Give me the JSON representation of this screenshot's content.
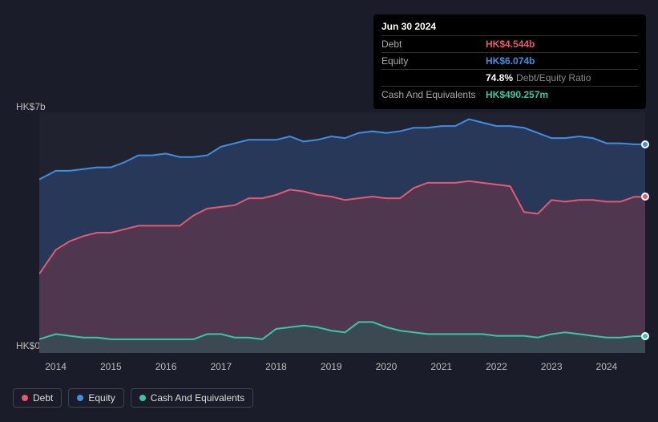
{
  "tooltip": {
    "date": "Jun 30 2024",
    "rows": [
      {
        "label": "Debt",
        "value": "HK$4.544b",
        "color": "#e8596f"
      },
      {
        "label": "Equity",
        "value": "HK$6.074b",
        "color": "#3d8fe6"
      },
      {
        "label": "",
        "value": "74.8%",
        "extra": "Debt/Equity Ratio",
        "color": "#ffffff"
      },
      {
        "label": "Cash And Equivalents",
        "value": "HK$490.257m",
        "color": "#38c7a5"
      }
    ]
  },
  "chart": {
    "type": "area",
    "background_color": "#20232f",
    "page_background": "#1a1d29",
    "y_axis": {
      "min": 0,
      "max": 7,
      "unit": "HK$b",
      "labels": [
        {
          "text": "HK$7b",
          "value": 7
        },
        {
          "text": "HK$0",
          "value": 0
        }
      ],
      "label_color": "#bbbbbb",
      "label_fontsize": 12
    },
    "x_axis": {
      "min": 2013.7,
      "max": 2024.7,
      "ticks": [
        2014,
        2015,
        2016,
        2017,
        2018,
        2019,
        2020,
        2021,
        2022,
        2023,
        2024
      ],
      "label_color": "#bbbbbb",
      "label_fontsize": 12
    },
    "series": [
      {
        "name": "Equity",
        "stroke": "#3d8fe6",
        "fill": "#2d4a7a",
        "fill_opacity": 0.55,
        "line_width": 2,
        "data": [
          [
            2013.7,
            5.05
          ],
          [
            2014.0,
            5.3
          ],
          [
            2014.25,
            5.3
          ],
          [
            2014.5,
            5.35
          ],
          [
            2014.75,
            5.4
          ],
          [
            2015.0,
            5.4
          ],
          [
            2015.25,
            5.55
          ],
          [
            2015.5,
            5.75
          ],
          [
            2015.75,
            5.75
          ],
          [
            2016.0,
            5.8
          ],
          [
            2016.25,
            5.7
          ],
          [
            2016.5,
            5.7
          ],
          [
            2016.75,
            5.75
          ],
          [
            2017.0,
            6.0
          ],
          [
            2017.25,
            6.1
          ],
          [
            2017.5,
            6.2
          ],
          [
            2017.75,
            6.2
          ],
          [
            2018.0,
            6.2
          ],
          [
            2018.25,
            6.3
          ],
          [
            2018.5,
            6.15
          ],
          [
            2018.75,
            6.2
          ],
          [
            2019.0,
            6.3
          ],
          [
            2019.25,
            6.25
          ],
          [
            2019.5,
            6.4
          ],
          [
            2019.75,
            6.45
          ],
          [
            2020.0,
            6.4
          ],
          [
            2020.25,
            6.45
          ],
          [
            2020.5,
            6.55
          ],
          [
            2020.75,
            6.55
          ],
          [
            2021.0,
            6.6
          ],
          [
            2021.25,
            6.6
          ],
          [
            2021.5,
            6.8
          ],
          [
            2021.75,
            6.7
          ],
          [
            2022.0,
            6.6
          ],
          [
            2022.25,
            6.6
          ],
          [
            2022.5,
            6.55
          ],
          [
            2022.75,
            6.4
          ],
          [
            2023.0,
            6.25
          ],
          [
            2023.25,
            6.25
          ],
          [
            2023.5,
            6.3
          ],
          [
            2023.75,
            6.25
          ],
          [
            2024.0,
            6.1
          ],
          [
            2024.25,
            6.1
          ],
          [
            2024.5,
            6.07
          ],
          [
            2024.7,
            6.07
          ]
        ]
      },
      {
        "name": "Debt",
        "stroke": "#e8596f",
        "fill": "#7a3548",
        "fill_opacity": 0.5,
        "line_width": 2,
        "data": [
          [
            2013.7,
            2.3
          ],
          [
            2014.0,
            3.0
          ],
          [
            2014.25,
            3.25
          ],
          [
            2014.5,
            3.4
          ],
          [
            2014.75,
            3.5
          ],
          [
            2015.0,
            3.5
          ],
          [
            2015.25,
            3.6
          ],
          [
            2015.5,
            3.7
          ],
          [
            2015.75,
            3.7
          ],
          [
            2016.0,
            3.7
          ],
          [
            2016.25,
            3.7
          ],
          [
            2016.5,
            4.0
          ],
          [
            2016.75,
            4.2
          ],
          [
            2017.0,
            4.25
          ],
          [
            2017.25,
            4.3
          ],
          [
            2017.5,
            4.5
          ],
          [
            2017.75,
            4.5
          ],
          [
            2018.0,
            4.6
          ],
          [
            2018.25,
            4.75
          ],
          [
            2018.5,
            4.7
          ],
          [
            2018.75,
            4.6
          ],
          [
            2019.0,
            4.55
          ],
          [
            2019.25,
            4.45
          ],
          [
            2019.5,
            4.5
          ],
          [
            2019.75,
            4.55
          ],
          [
            2020.0,
            4.5
          ],
          [
            2020.25,
            4.5
          ],
          [
            2020.5,
            4.8
          ],
          [
            2020.75,
            4.95
          ],
          [
            2021.0,
            4.95
          ],
          [
            2021.25,
            4.95
          ],
          [
            2021.5,
            5.0
          ],
          [
            2021.75,
            4.95
          ],
          [
            2022.0,
            4.9
          ],
          [
            2022.25,
            4.85
          ],
          [
            2022.5,
            4.1
          ],
          [
            2022.75,
            4.05
          ],
          [
            2023.0,
            4.45
          ],
          [
            2023.25,
            4.4
          ],
          [
            2023.5,
            4.45
          ],
          [
            2023.75,
            4.45
          ],
          [
            2024.0,
            4.4
          ],
          [
            2024.25,
            4.4
          ],
          [
            2024.5,
            4.54
          ],
          [
            2024.7,
            4.54
          ]
        ]
      },
      {
        "name": "Cash And Equivalents",
        "stroke": "#38c7a5",
        "fill": "#2a5a55",
        "fill_opacity": 0.55,
        "line_width": 2,
        "data": [
          [
            2013.7,
            0.4
          ],
          [
            2014.0,
            0.55
          ],
          [
            2014.25,
            0.5
          ],
          [
            2014.5,
            0.45
          ],
          [
            2014.75,
            0.45
          ],
          [
            2015.0,
            0.4
          ],
          [
            2015.25,
            0.4
          ],
          [
            2015.5,
            0.4
          ],
          [
            2015.75,
            0.4
          ],
          [
            2016.0,
            0.4
          ],
          [
            2016.25,
            0.4
          ],
          [
            2016.5,
            0.4
          ],
          [
            2016.75,
            0.55
          ],
          [
            2017.0,
            0.55
          ],
          [
            2017.25,
            0.45
          ],
          [
            2017.5,
            0.45
          ],
          [
            2017.75,
            0.4
          ],
          [
            2018.0,
            0.7
          ],
          [
            2018.25,
            0.75
          ],
          [
            2018.5,
            0.8
          ],
          [
            2018.75,
            0.75
          ],
          [
            2019.0,
            0.65
          ],
          [
            2019.25,
            0.6
          ],
          [
            2019.5,
            0.9
          ],
          [
            2019.75,
            0.9
          ],
          [
            2020.0,
            0.75
          ],
          [
            2020.25,
            0.65
          ],
          [
            2020.5,
            0.6
          ],
          [
            2020.75,
            0.55
          ],
          [
            2021.0,
            0.55
          ],
          [
            2021.25,
            0.55
          ],
          [
            2021.5,
            0.55
          ],
          [
            2021.75,
            0.55
          ],
          [
            2022.0,
            0.5
          ],
          [
            2022.25,
            0.5
          ],
          [
            2022.5,
            0.5
          ],
          [
            2022.75,
            0.45
          ],
          [
            2023.0,
            0.55
          ],
          [
            2023.25,
            0.6
          ],
          [
            2023.5,
            0.55
          ],
          [
            2023.75,
            0.5
          ],
          [
            2024.0,
            0.45
          ],
          [
            2024.25,
            0.45
          ],
          [
            2024.5,
            0.49
          ],
          [
            2024.7,
            0.49
          ]
        ]
      }
    ],
    "markers": [
      {
        "series": "Equity",
        "x": 2024.7,
        "y": 6.07,
        "fill": "#3d8fe6"
      },
      {
        "series": "Debt",
        "x": 2024.7,
        "y": 4.54,
        "fill": "#e8596f"
      },
      {
        "series": "Cash And Equivalents",
        "x": 2024.7,
        "y": 0.49,
        "fill": "#38c7a5"
      }
    ]
  },
  "legend": {
    "items": [
      {
        "label": "Debt",
        "color": "#e8596f"
      },
      {
        "label": "Equity",
        "color": "#3d8fe6"
      },
      {
        "label": "Cash And Equivalents",
        "color": "#38c7a5"
      }
    ],
    "border_color": "#444444",
    "text_color": "#dddddd"
  }
}
